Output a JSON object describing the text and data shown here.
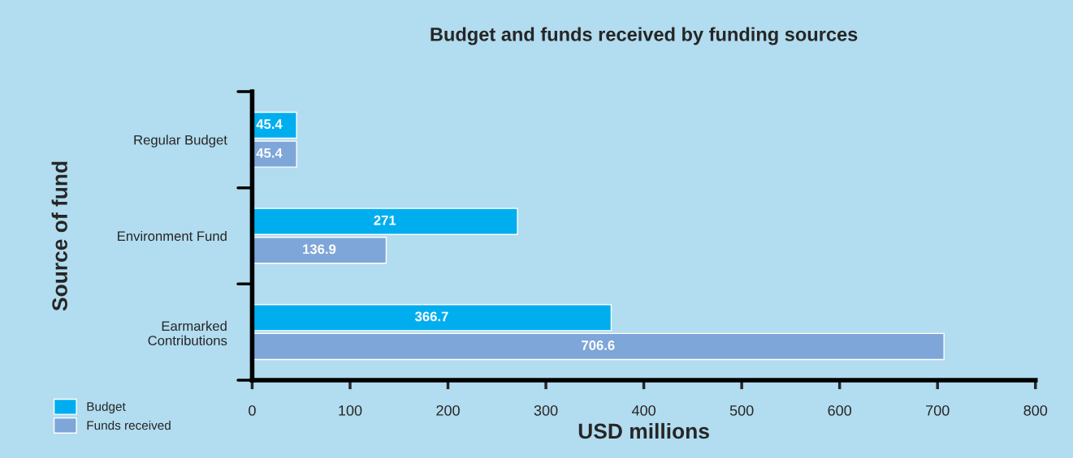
{
  "chart_data": {
    "type": "bar",
    "orientation": "horizontal",
    "title": "Budget and funds received by funding sources",
    "xlabel": "USD millions",
    "ylabel": "Source of fund",
    "categories": [
      "Regular Budget",
      "Environment Fund",
      "Earmarked\nContributions"
    ],
    "series": [
      {
        "name": "Budget",
        "color": "#00aeef",
        "values": [
          45.4,
          271,
          366.7
        ]
      },
      {
        "name": "Funds received",
        "color": "#7ea6d8",
        "values": [
          45.4,
          136.9,
          706.6
        ]
      }
    ],
    "xlim": [
      0,
      800
    ],
    "xticks": [
      0,
      100,
      200,
      300,
      400,
      500,
      600,
      700,
      800
    ],
    "data_labels": true,
    "legend": "bottom left",
    "grid": false
  }
}
